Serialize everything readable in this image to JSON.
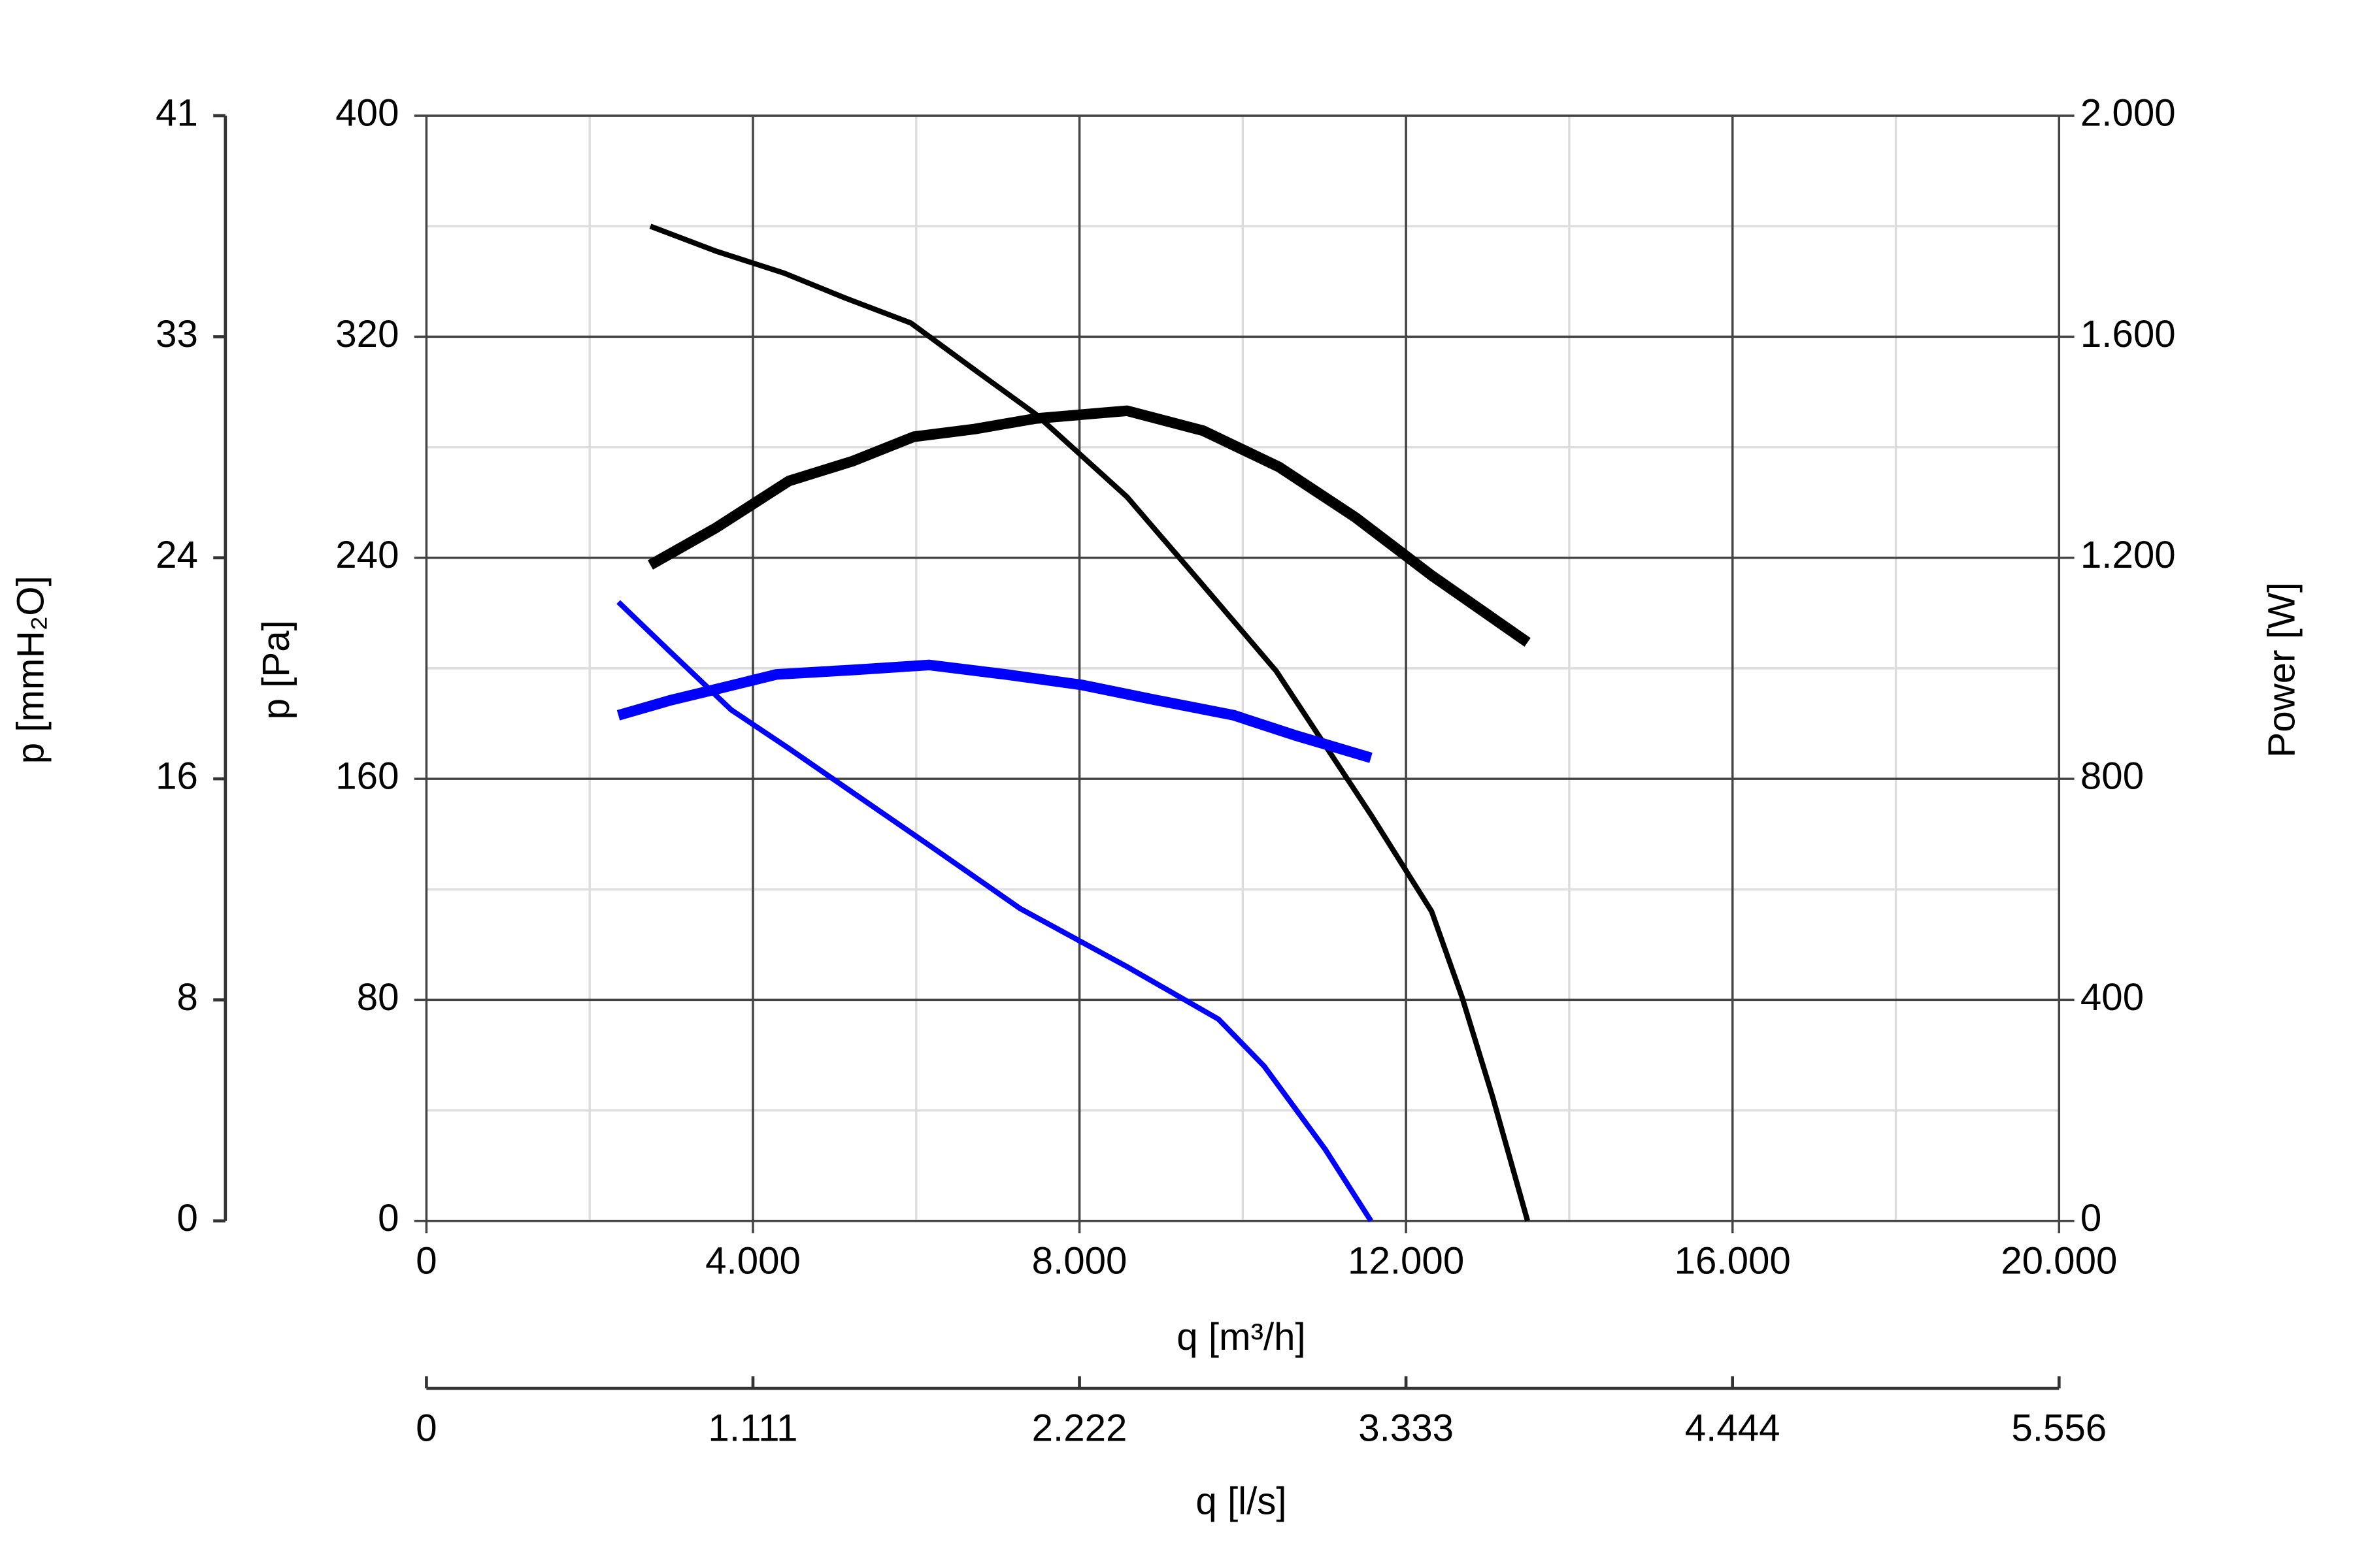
{
  "chart_data": {
    "type": "line",
    "xlabel": "q [m³/h]",
    "ylabel": "p [Pa]",
    "y2label": "Power [W]",
    "y3label": "p [mmH₂O]",
    "x2label": "q [l/s]",
    "xlim": [
      0,
      20000
    ],
    "xticks": [
      0,
      {
        "value": 4000,
        "label": "4.000"
      },
      {
        "value": 8000,
        "label": "8.000"
      },
      {
        "value": 12000,
        "label": "12.000"
      },
      {
        "value": 16000,
        "label": "16.000"
      },
      {
        "value": 20000,
        "label": "20.000"
      }
    ],
    "ylim": [
      0,
      400
    ],
    "yticks": [
      0,
      80,
      160,
      240,
      320,
      400
    ],
    "y2lim": [
      0,
      2000
    ],
    "y2ticks": [
      0,
      400,
      800,
      {
        "value": 1200,
        "label": "1.200"
      },
      {
        "value": 1600,
        "label": "1.600"
      },
      {
        "value": 2000,
        "label": "2.000"
      }
    ],
    "y3lim": [
      0,
      40.79
    ],
    "y3ticks": [
      0,
      {
        "value": 8.158,
        "label": "8"
      },
      {
        "value": 16.316,
        "label": "16"
      },
      {
        "value": 24.474,
        "label": "24"
      },
      {
        "value": 32.632,
        "label": "33"
      },
      {
        "value": 40.79,
        "label": "41"
      }
    ],
    "x2lim": [
      0,
      5555.6
    ],
    "x2ticks": [
      0,
      {
        "value": 1111.1,
        "label": "1.111"
      },
      {
        "value": 2222.2,
        "label": "2.222"
      },
      {
        "value": 3333.3,
        "label": "3.333"
      },
      {
        "value": 4444.4,
        "label": "4.444"
      },
      {
        "value": 5555.6,
        "label": "5.556"
      }
    ],
    "grid": true,
    "series": [
      {
        "color": "#000000",
        "x": [
          2743,
          3545,
          4384,
          5131,
          5933,
          6717,
          7463,
          8583,
          9515,
          10410,
          11570,
          12314,
          12686,
          13060,
          13489
        ],
        "values": [
          360,
          351,
          343,
          334,
          325,
          308,
          292,
          262,
          230,
          199,
          147,
          112,
          81,
          45,
          0
        ]
      },
      {
        "color": "#000000",
        "axis": "y2",
        "x": [
          2743,
          3545,
          4440,
          5224,
          5970,
          6717,
          7463,
          8583,
          9515,
          10448,
          11381,
          12314,
          13489
        ],
        "values": [
          1187,
          1254,
          1339,
          1375,
          1419,
          1433,
          1452,
          1466,
          1430,
          1364,
          1273,
          1168,
          1047
        ]
      },
      {
        "color": "#0000ff",
        "x": [
          2351,
          2985,
          3732,
          4440,
          5224,
          6157,
          7276,
          8583,
          9703,
          10262,
          11008,
          11570
        ],
        "values": [
          224,
          206,
          185,
          171,
          155,
          136,
          113,
          92,
          73,
          56,
          26,
          0
        ]
      },
      {
        "color": "#0000ff",
        "axis": "y2",
        "x": [
          2351,
          2985,
          3545,
          4291,
          5224,
          6157,
          7090,
          8023,
          8956,
          9889,
          10635,
          11570
        ],
        "values": [
          915,
          942,
          962,
          989,
          997,
          1006,
          989,
          970,
          942,
          915,
          879,
          838
        ]
      }
    ]
  }
}
